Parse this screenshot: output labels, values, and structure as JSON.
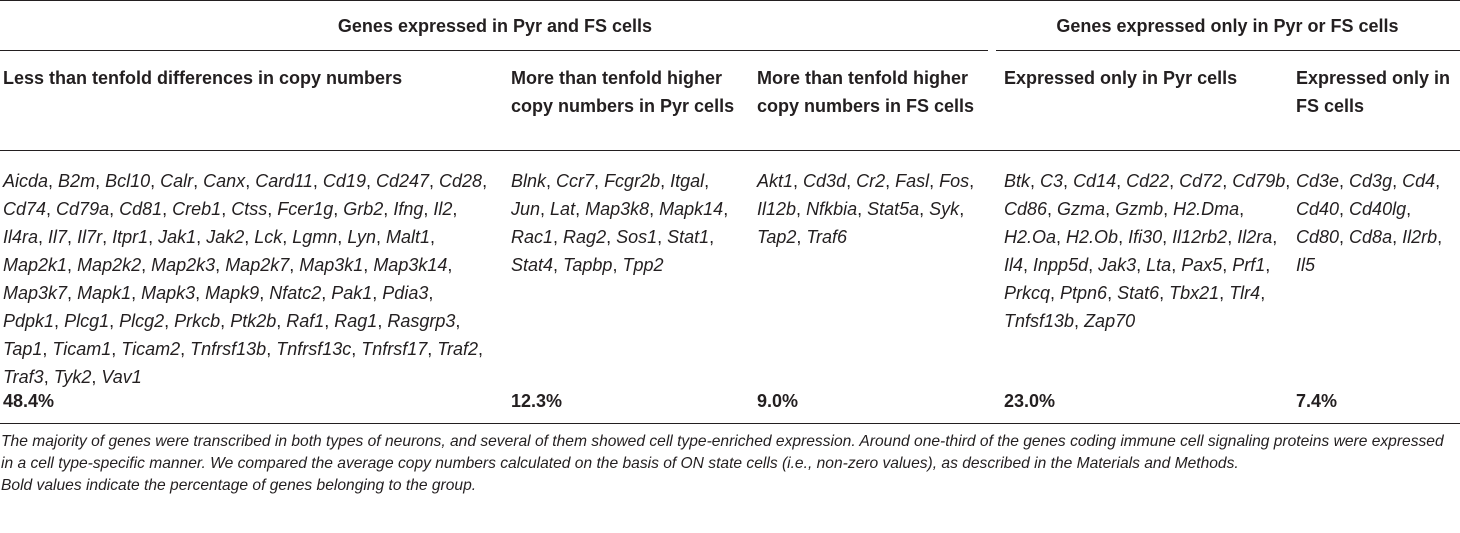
{
  "headers": {
    "group1": "Genes expressed in Pyr and FS cells",
    "group2": "Genes expressed only in Pyr or FS cells"
  },
  "columns": [
    {
      "header": "Less than tenfold differences in copy numbers",
      "genes": [
        "Aicda",
        "B2m",
        "Bcl10",
        "Calr",
        "Canx",
        "Card11",
        "Cd19",
        "Cd247",
        "Cd28",
        "Cd74",
        "Cd79a",
        "Cd81",
        "Creb1",
        "Ctss",
        "Fcer1g",
        "Grb2",
        "Ifng",
        "Il2",
        "Il4ra",
        "Il7",
        "Il7r",
        "Itpr1",
        "Jak1",
        "Jak2",
        "Lck",
        "Lgmn",
        "Lyn",
        "Malt1",
        "Map2k1",
        "Map2k2",
        "Map2k3",
        "Map2k7",
        "Map3k1",
        "Map3k14",
        "Map3k7",
        "Mapk1",
        "Mapk3",
        "Mapk9",
        "Nfatc2",
        "Pak1",
        "Pdia3",
        "Pdpk1",
        "Plcg1",
        "Plcg2",
        "Prkcb",
        "Ptk2b",
        "Raf1",
        "Rag1",
        "Rasgrp3",
        "Tap1",
        "Ticam1",
        "Ticam2",
        "Tnfrsf13b",
        "Tnfrsf13c",
        "Tnfrsf17",
        "Traf2",
        "Traf3",
        "Tyk2",
        "Vav1"
      ],
      "percent": "48.4%"
    },
    {
      "header": "More than tenfold higher copy numbers in Pyr cells",
      "genes": [
        "Blnk",
        "Ccr7",
        "Fcgr2b",
        "Itgal",
        "Jun",
        "Lat",
        "Map3k8",
        "Mapk14",
        "Rac1",
        "Rag2",
        "Sos1",
        "Stat1",
        "Stat4",
        "Tapbp",
        "Tpp2"
      ],
      "percent": "12.3%"
    },
    {
      "header": "More than tenfold higher copy numbers in FS cells",
      "genes": [
        "Akt1",
        "Cd3d",
        "Cr2",
        "Fasl",
        "Fos",
        "Il12b",
        "Nfkbia",
        "Stat5a",
        "Syk",
        "Tap2",
        "Traf6"
      ],
      "percent": "9.0%"
    },
    {
      "header": "Expressed only in Pyr cells",
      "genes": [
        "Btk",
        "C3",
        "Cd14",
        "Cd22",
        "Cd72",
        "Cd79b",
        "Cd86",
        "Gzma",
        "Gzmb",
        "H2.Dma",
        "H2.Oa",
        "H2.Ob",
        "Ifi30",
        "Il12rb2",
        "Il2ra",
        "Il4",
        "Inpp5d",
        "Jak3",
        "Lta",
        "Pax5",
        "Prf1",
        "Prkcq",
        "Ptpn6",
        "Stat6",
        "Tbx21",
        "Tlr4",
        "Tnfsf13b",
        "Zap70"
      ],
      "percent": "23.0%"
    },
    {
      "header": "Expressed only in FS cells",
      "genes": [
        "Cd3e",
        "Cd3g",
        "Cd4",
        "Cd40",
        "Cd40lg",
        "Cd80",
        "Cd8a",
        "Il2rb",
        "Il5"
      ],
      "percent": "7.4%"
    }
  ],
  "footnote": {
    "text": "The majority of genes were transcribed in both types of neurons, and several of them showed cell type-enriched expression. Around one-third of the genes coding immune cell signaling proteins were expressed in a cell type-specific manner. We compared the average copy numbers calculated on the basis of ON state cells (i.e., non-zero values), as described in the Materials and Methods.",
    "bold_note": "Bold values indicate the percentage of genes belonging to the group."
  }
}
